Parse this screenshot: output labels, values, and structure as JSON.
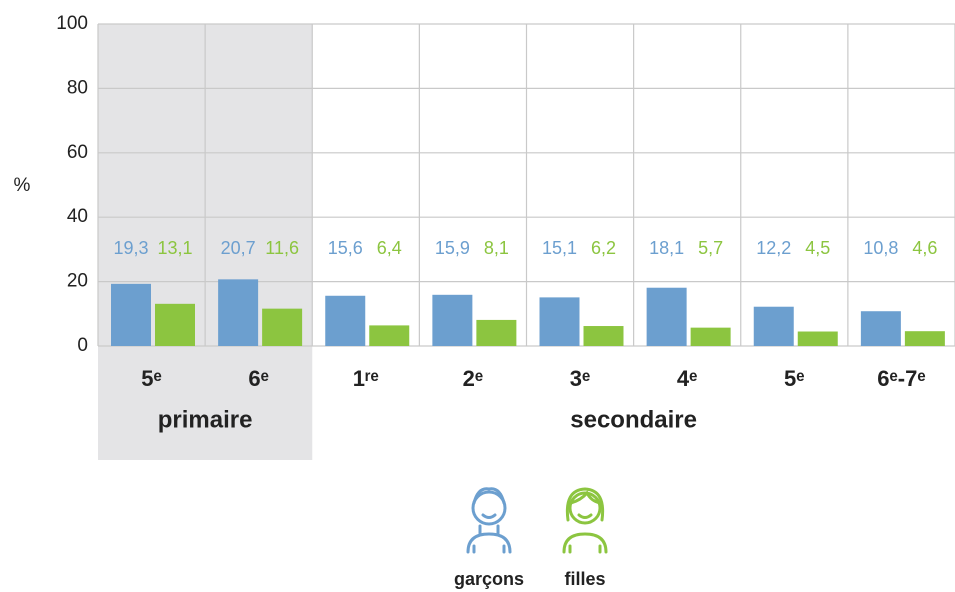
{
  "chart_data": {
    "type": "bar",
    "y_label": "%",
    "categories": [
      "5ᵉ",
      "6ᵉ",
      "1ʳᵉ",
      "2ᵉ",
      "3ᵉ",
      "4ᵉ",
      "5ᵉ",
      "6ᵉ-7ᵉ"
    ],
    "groups": [
      {
        "name": "primaire",
        "count": 2
      },
      {
        "name": "secondaire",
        "count": 6
      }
    ],
    "series": [
      {
        "name": "garçons",
        "color": "#6c9fcf",
        "values": [
          19.3,
          20.7,
          15.6,
          15.9,
          15.1,
          18.1,
          12.2,
          10.8
        ],
        "value_labels": [
          "19,3",
          "20,7",
          "15,6",
          "15,9",
          "15,1",
          "18,1",
          "12,2",
          "10,8"
        ]
      },
      {
        "name": "filles",
        "color": "#8cc540",
        "values": [
          13.1,
          11.6,
          6.4,
          8.1,
          6.2,
          5.7,
          4.5,
          4.6
        ],
        "value_labels": [
          "13,1",
          "11,6",
          "6,4",
          "8,1",
          "6,2",
          "5,7",
          "4,5",
          "4,6"
        ]
      }
    ],
    "ylim": [
      0,
      100
    ],
    "yticks": [
      0,
      20,
      40,
      60,
      80,
      100
    ],
    "grid": true
  }
}
